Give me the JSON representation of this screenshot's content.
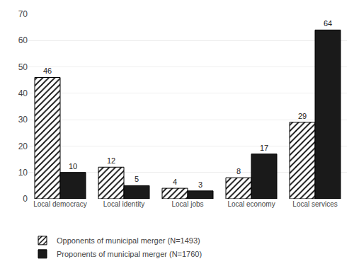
{
  "chart_data": {
    "type": "bar",
    "categories": [
      "Local democracy",
      "Local identity",
      "Local jobs",
      "Local economy",
      "Local services"
    ],
    "series": [
      {
        "name": "Opponents of municipal merger (N=1493)",
        "color": "white",
        "values": [
          46,
          12,
          4,
          8,
          29
        ]
      },
      {
        "name": "Proponents of municipal merger (N=1760)",
        "color": "#1a1a1a",
        "values": [
          10,
          5,
          3,
          17,
          64
        ]
      }
    ],
    "ylim": [
      0,
      70
    ],
    "yticks": [
      0,
      10,
      20,
      30,
      40,
      50,
      60,
      70
    ],
    "grid": true,
    "data_labels": true,
    "legend": "bottom"
  }
}
